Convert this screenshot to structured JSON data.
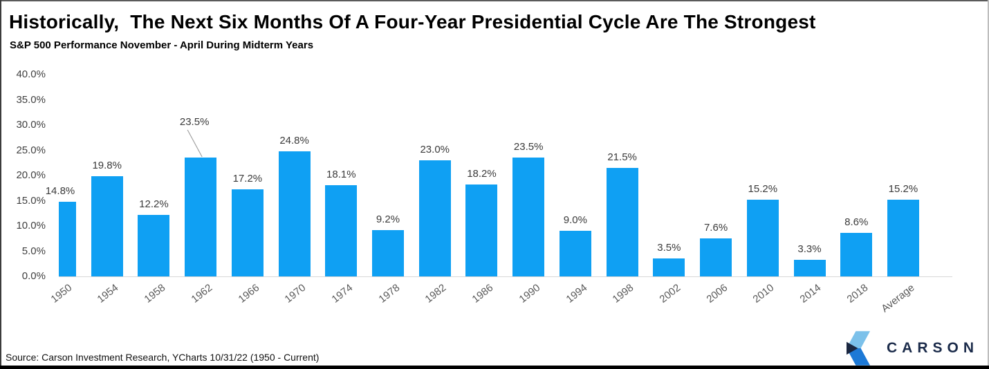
{
  "title": "Historically,  The Next Six Months Of A Four-Year Presidential Cycle Are The Strongest",
  "subtitle": "S&P 500 Performance November - April During Midterm Years",
  "source_note": "Source: Carson Investment Research, YCharts 10/31/22 (1950 - Current)",
  "logo": {
    "wordmark": "CARSON",
    "icon": "carson-chevron-icon",
    "colors": {
      "light_blue": "#7cc1ea",
      "medium_blue": "#1d79d6",
      "navy": "#1b2740",
      "wordmark_navy": "#1b2b4a"
    }
  },
  "chart_data": {
    "type": "bar",
    "title": "Historically,  The Next Six Months Of A Four-Year Presidential Cycle Are The Strongest",
    "subtitle": "S&P 500 Performance November - April During Midterm Years",
    "categories": [
      "1950",
      "1954",
      "1958",
      "1962",
      "1966",
      "1970",
      "1974",
      "1978",
      "1982",
      "1986",
      "1990",
      "1994",
      "1998",
      "2002",
      "2006",
      "2010",
      "2014",
      "2018",
      "Average"
    ],
    "values": [
      14.8,
      19.8,
      12.2,
      23.5,
      17.2,
      24.8,
      18.1,
      9.2,
      23.0,
      18.2,
      23.5,
      9.0,
      21.5,
      3.5,
      7.6,
      15.2,
      3.3,
      8.6,
      15.2
    ],
    "data_labels": [
      "14.8%",
      "19.8%",
      "12.2%",
      "23.5%",
      "17.2%",
      "24.8%",
      "18.1%",
      "9.2%",
      "23.0%",
      "18.2%",
      "23.5%",
      "9.0%",
      "21.5%",
      "3.5%",
      "7.6%",
      "15.2%",
      "3.3%",
      "8.6%",
      "15.2%"
    ],
    "y_ticks": [
      "40.0%",
      "35.0%",
      "30.0%",
      "25.0%",
      "20.0%",
      "15.0%",
      "10.0%",
      "5.0%",
      "0.0%"
    ],
    "ylim": [
      0,
      40
    ],
    "xlabel": "",
    "ylabel": "",
    "grid": false,
    "legend": "none",
    "bar_color": "#0FA0F3",
    "axis_line_color": "#d7d7d7",
    "annotation": {
      "category": "1962",
      "label": "23.5%",
      "has_leader_line": true,
      "leader_line_color": "#a0a0a0"
    }
  }
}
